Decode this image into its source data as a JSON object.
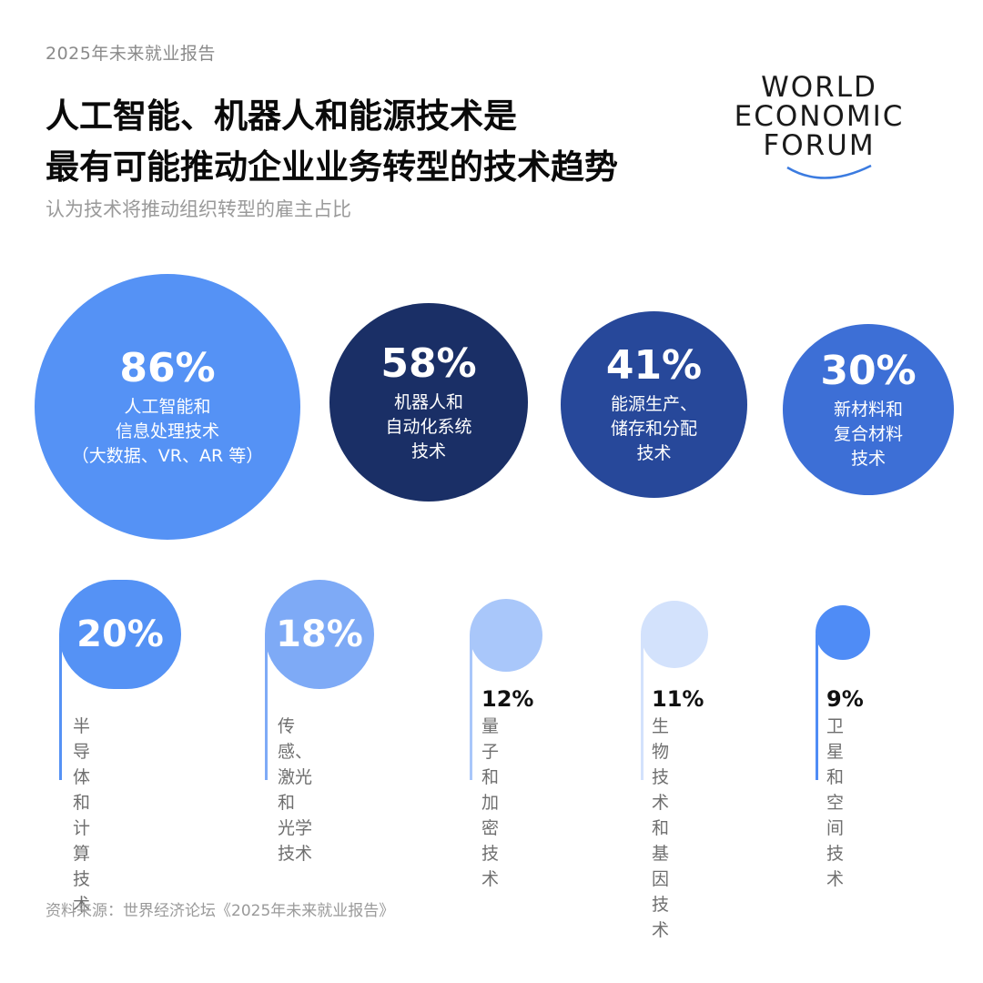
{
  "header": {
    "kicker": "2025年未来就业报告",
    "title_line1": "人工智能、机器人和能源技术是",
    "title_line2": "最有可能推动企业业务转型的技术趋势",
    "subtitle": "认为技术将推动组织转型的雇主占比"
  },
  "logo": {
    "line1": "WORLD",
    "line2": "ECONOMIC",
    "line3": "FORUM",
    "color": "#1a1a1a",
    "arc_color": "#3b7be0"
  },
  "chart_data": {
    "type": "bubble",
    "title": "人工智能、机器人和能源技术是最有可能推动企业业务转型的技术趋势",
    "subtitle": "认为技术将推动组织转型的雇主占比",
    "unit": "%",
    "categories": [
      "人工智能和信息处理技术（大数据、VR、AR 等）",
      "机器人和自动化系统技术",
      "能源生产、储存和分配技术",
      "新材料和复合材料技术",
      "半导体和计算技术",
      "传感、激光和光学技术",
      "量子和加密技术",
      "生物技术和基因技术",
      "卫星和空间技术"
    ],
    "values": [
      86,
      58,
      41,
      30,
      20,
      18,
      12,
      11,
      9
    ],
    "items": [
      {
        "value": 86,
        "pct": "86%",
        "label": "人工智能和\n信息处理技术\n（大数据、VR、AR 等）",
        "color": "#5592f5"
      },
      {
        "value": 58,
        "pct": "58%",
        "label": "机器人和\n自动化系统\n技术",
        "color": "#1a2f66"
      },
      {
        "value": 41,
        "pct": "41%",
        "label": "能源生产、\n储存和分配\n技术",
        "color": "#27489a"
      },
      {
        "value": 30,
        "pct": "30%",
        "label": "新材料和\n复合材料\n技术",
        "color": "#3d6fd6"
      },
      {
        "value": 20,
        "pct": "20%",
        "label": "半导体和\n计算技术",
        "color": "#5592f5"
      },
      {
        "value": 18,
        "pct": "18%",
        "label": "传感、激光和\n光学技术",
        "color": "#7eaaf6"
      },
      {
        "value": 12,
        "pct": "12%",
        "label": "量子和\n加密技术",
        "color": "#a9c7fa"
      },
      {
        "value": 11,
        "pct": "11%",
        "label": "生物技术和\n基因技术",
        "color": "#d3e2fc"
      },
      {
        "value": 9,
        "pct": "9%",
        "label": "卫星和\n空间技术",
        "color": "#4f8cf6"
      }
    ]
  },
  "footer": {
    "source": "资料来源：世界经济论坛《2025年未来就业报告》"
  }
}
